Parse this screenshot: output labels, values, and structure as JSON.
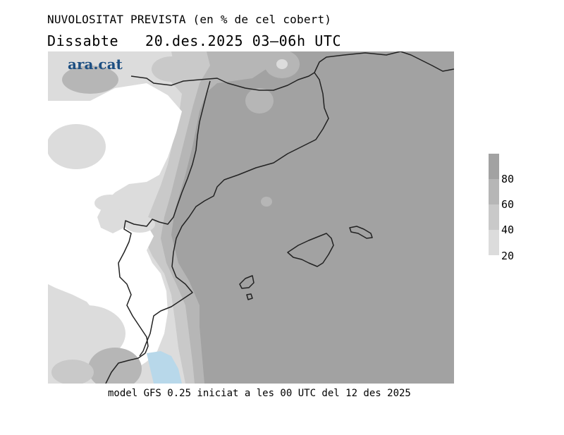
{
  "title": "NUVOLOSITAT PREVISTA (en % de cel cobert)",
  "date_line": "Dissabte   20.des.2025 03–06h UTC",
  "logo": "ara.cat",
  "legend": {
    "bands": [
      {
        "range": "80-100",
        "color": "#a2a2a2"
      },
      {
        "range": "60-80",
        "color": "#b6b6b6"
      },
      {
        "range": "40-60",
        "color": "#c9c9c9"
      },
      {
        "range": "20-40",
        "color": "#dcdcdc"
      }
    ],
    "labels": [
      "80",
      "60",
      "40",
      "20"
    ]
  },
  "colors": {
    "cloud_80_100": "#a2a2a2",
    "cloud_60_80": "#b6b6b6",
    "cloud_40_60": "#c9c9c9",
    "cloud_20_40": "#dcdcdc",
    "clear": "#ffffff",
    "water": "#b8d8ea",
    "coastline": "#222222"
  },
  "footer": "model GFS 0.25 iniciat a les 00 UTC del 12 des 2025"
}
